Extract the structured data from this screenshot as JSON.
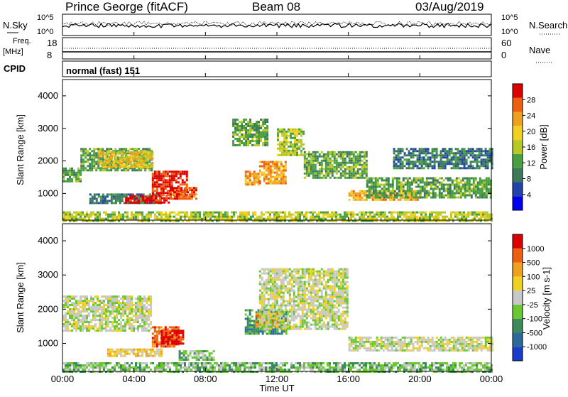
{
  "header": {
    "station": "Prince George (fitACF)",
    "beam": "Beam 08",
    "date": "03/Aug/2019"
  },
  "noise_panel": {
    "left_label": "N.Sky",
    "left_ticks": [
      "10^5",
      "10^0"
    ],
    "right_label": "N.Search",
    "right_ticks": [
      "10^5",
      "10^0"
    ]
  },
  "freq_panel": {
    "left_label_line1": "Freq.",
    "left_label_line2": "[MHz]",
    "left_ticks": [
      "18",
      "8"
    ],
    "right_label": "Nave",
    "right_ticks": [
      "60",
      "0"
    ]
  },
  "cpid": {
    "label": "CPID",
    "mode": "normal (fast)  151"
  },
  "x_axis": {
    "label": "Time UT",
    "ticks": [
      "00:00",
      "04:00",
      "08:00",
      "12:00",
      "16:00",
      "20:00",
      "00:00"
    ]
  },
  "power_panel": {
    "ylabel": "Slant Range [km]",
    "yticks": [
      "4000",
      "3000",
      "2000",
      "1000"
    ],
    "colorbar_label": "Power [dB]",
    "colorbar_ticks": [
      "28",
      "24",
      "20",
      "16",
      "12",
      "8",
      "4"
    ],
    "colors": [
      "#0000ee",
      "#2244aa",
      "#3a7a5a",
      "#4aa040",
      "#b8c828",
      "#f0d020",
      "#f0a020",
      "#ee6010",
      "#dd0000"
    ]
  },
  "velocity_panel": {
    "ylabel": "Slant Range [km]",
    "yticks": [
      "4000",
      "3000",
      "2000",
      "1000"
    ],
    "colorbar_label": "Velocity [m s-1]",
    "colorbar_ticks": [
      "1000",
      "500",
      "100",
      "25",
      "-25",
      "-100",
      "-500",
      "-1000"
    ],
    "colors": [
      "#1a3ccc",
      "#2a6a9a",
      "#3a8a5a",
      "#6ac830",
      "#c8c8c8",
      "#f0d020",
      "#f0a020",
      "#ee6010",
      "#dd0000"
    ]
  },
  "chart_data": {
    "type": "heatmap",
    "x_range_hours": [
      0,
      24
    ],
    "y_range_km": [
      180,
      4500
    ],
    "power_regions": [
      {
        "t0": 0.0,
        "t1": 1.0,
        "r0": 1400,
        "r1": 1800,
        "level": 3
      },
      {
        "t0": 1.0,
        "t1": 5.0,
        "r0": 1700,
        "r1": 2400,
        "level": 3
      },
      {
        "t0": 2.0,
        "t1": 5.0,
        "r0": 1800,
        "r1": 2300,
        "level": 5
      },
      {
        "t0": 1.5,
        "t1": 5.5,
        "r0": 700,
        "r1": 1000,
        "level": 2
      },
      {
        "t0": 3.5,
        "t1": 6.0,
        "r0": 750,
        "r1": 950,
        "level": 8
      },
      {
        "t0": 5.0,
        "t1": 7.0,
        "r0": 950,
        "r1": 1700,
        "level": 8
      },
      {
        "t0": 6.0,
        "t1": 7.5,
        "r0": 850,
        "r1": 1200,
        "level": 7
      },
      {
        "t0": 9.5,
        "t1": 11.5,
        "r0": 2500,
        "r1": 3300,
        "level": 3
      },
      {
        "t0": 10.2,
        "t1": 11.0,
        "r0": 1300,
        "r1": 1700,
        "level": 6
      },
      {
        "t0": 11.0,
        "t1": 12.5,
        "r0": 1300,
        "r1": 2000,
        "level": 6
      },
      {
        "t0": 12.0,
        "t1": 13.5,
        "r0": 2200,
        "r1": 3000,
        "level": 4
      },
      {
        "t0": 13.5,
        "t1": 17.0,
        "r0": 1500,
        "r1": 2300,
        "level": 3
      },
      {
        "t0": 16.0,
        "t1": 20.0,
        "r0": 800,
        "r1": 1100,
        "level": 6
      },
      {
        "t0": 17.0,
        "t1": 24.0,
        "r0": 900,
        "r1": 1500,
        "level": 3
      },
      {
        "t0": 18.5,
        "t1": 24.0,
        "r0": 1800,
        "r1": 2400,
        "level": 2
      },
      {
        "t0": 0.0,
        "t1": 24.0,
        "r0": 180,
        "r1": 450,
        "level": 4
      }
    ],
    "velocity_regions": [
      {
        "t0": 0.0,
        "t1": 5.0,
        "r0": 1400,
        "r1": 2400,
        "level": 4
      },
      {
        "t0": 5.0,
        "t1": 6.5,
        "r0": 900,
        "r1": 1500,
        "level": 7
      },
      {
        "t0": 5.5,
        "t1": 6.8,
        "r0": 1000,
        "r1": 1400,
        "level": 8
      },
      {
        "t0": 2.5,
        "t1": 5.5,
        "r0": 650,
        "r1": 850,
        "level": 5
      },
      {
        "t0": 6.5,
        "t1": 8.5,
        "r0": 550,
        "r1": 800,
        "level": 3
      },
      {
        "t0": 10.2,
        "t1": 12.5,
        "r0": 1300,
        "r1": 2000,
        "level": 2
      },
      {
        "t0": 10.8,
        "t1": 12.0,
        "r0": 1500,
        "r1": 1900,
        "level": 6
      },
      {
        "t0": 11.0,
        "t1": 16.0,
        "r0": 1400,
        "r1": 3200,
        "level": 4
      },
      {
        "t0": 16.0,
        "t1": 24.0,
        "r0": 800,
        "r1": 1200,
        "level": 4
      },
      {
        "t0": 0.0,
        "t1": 24.0,
        "r0": 180,
        "r1": 450,
        "level": 3
      }
    ]
  }
}
